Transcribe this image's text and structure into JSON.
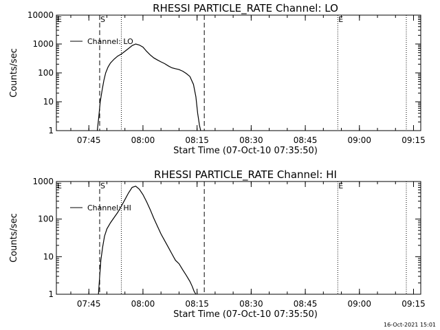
{
  "footer": {
    "timestamp": "16-Oct-2021 15:01"
  },
  "chart_data": [
    {
      "type": "line",
      "title": "RHESSI PARTICLE_RATE Channel: LO",
      "xlabel": "Start Time (07-Oct-10 07:35:50)",
      "ylabel": "Counts/sec",
      "yscale": "log",
      "ylim": [
        1,
        10000
      ],
      "xlim": [
        "07:36",
        "09:17"
      ],
      "x_tick_labels": [
        "07:45",
        "08:00",
        "08:15",
        "08:30",
        "08:45",
        "09:00",
        "09:15"
      ],
      "y_tick_labels": [
        "1",
        "10",
        "100",
        "1000",
        "10000"
      ],
      "legend": {
        "position": "top-left",
        "entries": [
          "Channel: LO"
        ]
      },
      "markers": [
        {
          "label": "E",
          "time": "07:36",
          "style": "dotted"
        },
        {
          "label": "S",
          "time": "07:48",
          "style": "dashed"
        },
        {
          "label": "",
          "time": "07:54",
          "style": "dotted"
        },
        {
          "label": "",
          "time": "08:17",
          "style": "dashed"
        },
        {
          "label": "E",
          "time": "08:54",
          "style": "dotted"
        },
        {
          "label": "",
          "time": "09:13",
          "style": "dotted"
        }
      ],
      "series": [
        {
          "name": "Channel: LO",
          "x": [
            "07:47:20",
            "07:47:45",
            "07:48:10",
            "07:48:40",
            "07:49:10",
            "07:49:40",
            "07:50:20",
            "07:51:00",
            "07:52:00",
            "07:53:00",
            "07:54:00",
            "07:55:00",
            "07:56:00",
            "07:57:00",
            "07:58:00",
            "07:59:00",
            "08:00:00",
            "08:01:00",
            "08:02:00",
            "08:03:00",
            "08:04:00",
            "08:05:00",
            "08:06:00",
            "08:07:00",
            "08:08:00",
            "08:09:00",
            "08:10:00",
            "08:11:00",
            "08:12:00",
            "08:13:00",
            "08:14:00",
            "08:14:40",
            "08:15:10",
            "08:15:40",
            "08:16:00"
          ],
          "y": [
            1,
            3,
            10,
            25,
            55,
            100,
            160,
            220,
            300,
            380,
            450,
            560,
            700,
            880,
            1000,
            920,
            780,
            560,
            420,
            330,
            280,
            240,
            210,
            175,
            150,
            140,
            130,
            115,
            95,
            75,
            40,
            15,
            4,
            1.5,
            1
          ]
        }
      ]
    },
    {
      "type": "line",
      "title": "RHESSI PARTICLE_RATE Channel: HI",
      "xlabel": "Start Time (07-Oct-10 07:35:50)",
      "ylabel": "Counts/sec",
      "yscale": "log",
      "ylim": [
        1,
        1000
      ],
      "xlim": [
        "07:36",
        "09:17"
      ],
      "x_tick_labels": [
        "07:45",
        "08:00",
        "08:15",
        "08:30",
        "08:45",
        "09:00",
        "09:15"
      ],
      "y_tick_labels": [
        "1",
        "10",
        "100",
        "1000"
      ],
      "legend": {
        "position": "top-left",
        "entries": [
          "Channel: HI"
        ]
      },
      "markers": [
        {
          "label": "E",
          "time": "07:36",
          "style": "dotted"
        },
        {
          "label": "S",
          "time": "07:48",
          "style": "dashed"
        },
        {
          "label": "",
          "time": "07:54",
          "style": "dotted"
        },
        {
          "label": "",
          "time": "08:17",
          "style": "dashed"
        },
        {
          "label": "E",
          "time": "08:54",
          "style": "dotted"
        },
        {
          "label": "",
          "time": "09:13",
          "style": "dotted"
        }
      ],
      "series": [
        {
          "name": "Channel: HI",
          "x": [
            "07:47:40",
            "07:48:00",
            "07:48:20",
            "07:48:50",
            "07:49:20",
            "07:50:00",
            "07:51:00",
            "07:52:00",
            "07:53:00",
            "07:54:00",
            "07:55:00",
            "07:56:00",
            "07:57:00",
            "07:58:00",
            "07:59:00",
            "08:00:00",
            "08:01:00",
            "08:02:00",
            "08:03:00",
            "08:04:00",
            "08:05:00",
            "08:06:00",
            "08:07:00",
            "08:08:00",
            "08:09:00",
            "08:10:00",
            "08:11:00",
            "08:12:00",
            "08:13:00",
            "08:13:40",
            "08:14:10",
            "08:14:40"
          ],
          "y": [
            1,
            3,
            8,
            18,
            35,
            55,
            80,
            110,
            150,
            220,
            330,
            500,
            700,
            750,
            620,
            450,
            290,
            180,
            105,
            65,
            40,
            27,
            18,
            12,
            8,
            6.5,
            4.5,
            3.2,
            2.2,
            1.6,
            1.2,
            1
          ]
        }
      ]
    }
  ]
}
